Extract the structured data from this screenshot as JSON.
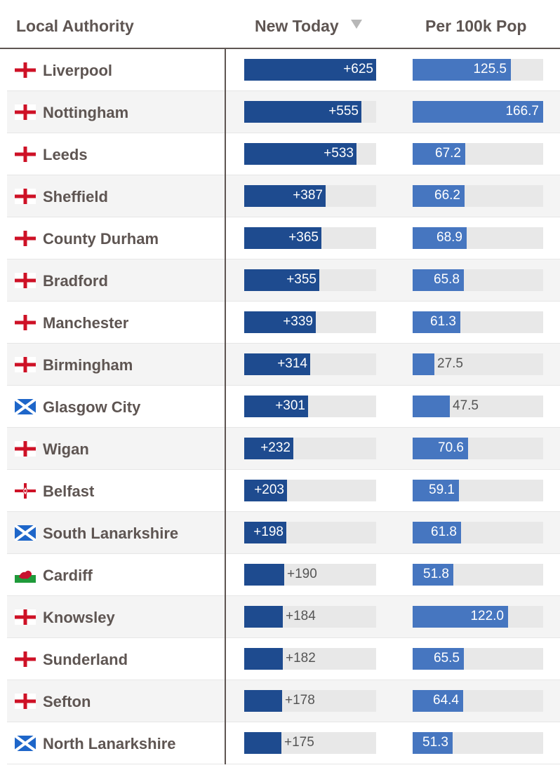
{
  "header": {
    "col_authority": "Local Authority",
    "col_new": "New Today",
    "col_per": "Per 100k Pop",
    "sorted_by": "New Today",
    "sort_direction": "descending"
  },
  "colors": {
    "new_bar": "#1e4b8f",
    "per_bar": "#4676c0",
    "track": "#e8e8e8",
    "text": "#5e5552"
  },
  "rows": [
    {
      "name": "Liverpool",
      "flag": "england-flag-icon",
      "new_label": "+625",
      "new": 625,
      "per_label": "125.5",
      "per": 125.5
    },
    {
      "name": "Nottingham",
      "flag": "england-flag-icon",
      "new_label": "+555",
      "new": 555,
      "per_label": "166.7",
      "per": 166.7
    },
    {
      "name": "Leeds",
      "flag": "england-flag-icon",
      "new_label": "+533",
      "new": 533,
      "per_label": "67.2",
      "per": 67.2
    },
    {
      "name": "Sheffield",
      "flag": "england-flag-icon",
      "new_label": "+387",
      "new": 387,
      "per_label": "66.2",
      "per": 66.2
    },
    {
      "name": "County Durham",
      "flag": "england-flag-icon",
      "new_label": "+365",
      "new": 365,
      "per_label": "68.9",
      "per": 68.9
    },
    {
      "name": "Bradford",
      "flag": "england-flag-icon",
      "new_label": "+355",
      "new": 355,
      "per_label": "65.8",
      "per": 65.8
    },
    {
      "name": "Manchester",
      "flag": "england-flag-icon",
      "new_label": "+339",
      "new": 339,
      "per_label": "61.3",
      "per": 61.3
    },
    {
      "name": "Birmingham",
      "flag": "england-flag-icon",
      "new_label": "+314",
      "new": 314,
      "per_label": "27.5",
      "per": 27.5
    },
    {
      "name": "Glasgow City",
      "flag": "scotland-flag-icon",
      "new_label": "+301",
      "new": 301,
      "per_label": "47.5",
      "per": 47.5
    },
    {
      "name": "Wigan",
      "flag": "england-flag-icon",
      "new_label": "+232",
      "new": 232,
      "per_label": "70.6",
      "per": 70.6
    },
    {
      "name": "Belfast",
      "flag": "northern-ireland-flag-icon",
      "new_label": "+203",
      "new": 203,
      "per_label": "59.1",
      "per": 59.1
    },
    {
      "name": "South Lanarkshire",
      "flag": "scotland-flag-icon",
      "new_label": "+198",
      "new": 198,
      "per_label": "61.8",
      "per": 61.8
    },
    {
      "name": "Cardiff",
      "flag": "wales-flag-icon",
      "new_label": "+190",
      "new": 190,
      "per_label": "51.8",
      "per": 51.8
    },
    {
      "name": "Knowsley",
      "flag": "england-flag-icon",
      "new_label": "+184",
      "new": 184,
      "per_label": "122.0",
      "per": 122.0
    },
    {
      "name": "Sunderland",
      "flag": "england-flag-icon",
      "new_label": "+182",
      "new": 182,
      "per_label": "65.5",
      "per": 65.5
    },
    {
      "name": "Sefton",
      "flag": "england-flag-icon",
      "new_label": "+178",
      "new": 178,
      "per_label": "64.4",
      "per": 64.4
    },
    {
      "name": "North Lanarkshire",
      "flag": "scotland-flag-icon",
      "new_label": "+175",
      "new": 175,
      "per_label": "51.3",
      "per": 51.3
    }
  ]
}
